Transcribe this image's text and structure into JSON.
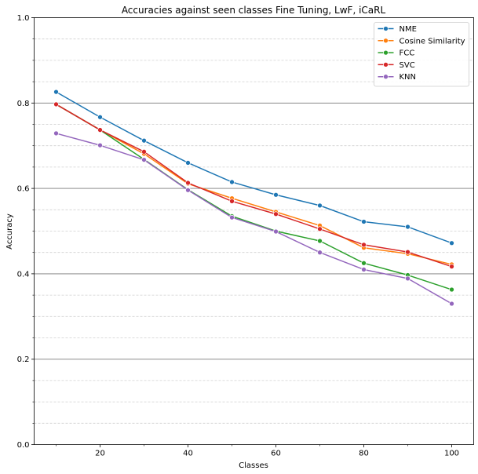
{
  "chart_data": {
    "type": "line",
    "title": "Accuracies against seen classes Fine Tuning, LwF, iCaRL",
    "xlabel": "Classes",
    "ylabel": "Accuracy",
    "xlim": [
      5,
      105
    ],
    "ylim": [
      0.0,
      1.0
    ],
    "x": [
      10,
      20,
      30,
      40,
      50,
      60,
      70,
      80,
      90,
      100
    ],
    "x_ticks": [
      20,
      40,
      60,
      80,
      100
    ],
    "x_tick_labels": [
      "20",
      "40",
      "60",
      "80",
      "100"
    ],
    "x_minor_ticks": [
      10,
      30,
      50,
      70,
      90
    ],
    "y_ticks": [
      0.0,
      0.2,
      0.4,
      0.6,
      0.8,
      1.0
    ],
    "y_tick_labels": [
      "0.0",
      "0.2",
      "0.4",
      "0.6",
      "0.8",
      "1.0"
    ],
    "y_minor_ticks": [
      0.05,
      0.1,
      0.15,
      0.25,
      0.3,
      0.35,
      0.45,
      0.5,
      0.55,
      0.65,
      0.7,
      0.75,
      0.85,
      0.9,
      0.95
    ],
    "grid": true,
    "legend_position": "top-right",
    "series": [
      {
        "name": "NME",
        "color": "#1f77b4",
        "values": [
          0.826,
          0.767,
          0.712,
          0.66,
          0.615,
          0.585,
          0.56,
          0.522,
          0.51,
          0.472
        ]
      },
      {
        "name": "Cosine Similarity",
        "color": "#ff7f0e",
        "values": [
          0.797,
          0.737,
          0.681,
          0.611,
          0.577,
          0.545,
          0.513,
          0.461,
          0.447,
          0.422
        ]
      },
      {
        "name": "FCC",
        "color": "#2ca02c",
        "values": [
          0.797,
          0.737,
          0.668,
          0.597,
          0.535,
          0.5,
          0.477,
          0.425,
          0.397,
          0.363
        ]
      },
      {
        "name": "SVC",
        "color": "#d62728",
        "values": [
          0.797,
          0.737,
          0.686,
          0.613,
          0.57,
          0.54,
          0.505,
          0.468,
          0.451,
          0.417
        ]
      },
      {
        "name": "KNN",
        "color": "#9467bd",
        "values": [
          0.729,
          0.701,
          0.667,
          0.596,
          0.532,
          0.499,
          0.45,
          0.41,
          0.389,
          0.33
        ]
      }
    ]
  }
}
